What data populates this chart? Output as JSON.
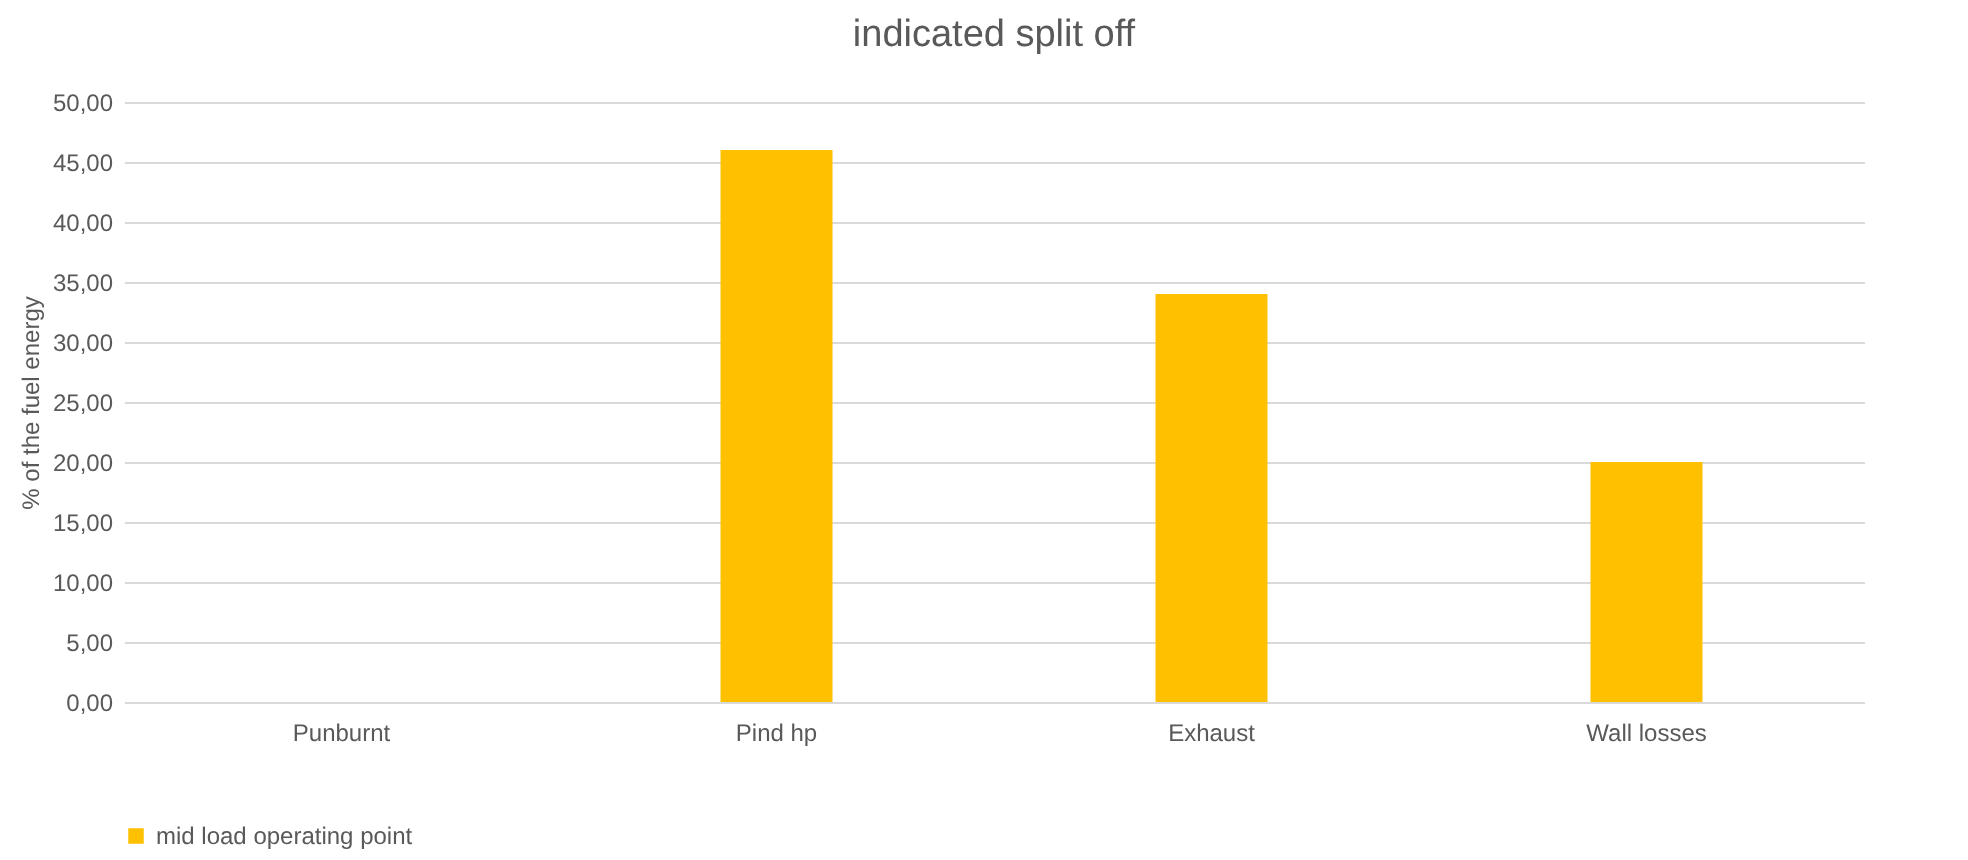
{
  "chart_data": {
    "type": "bar",
    "title": "indicated split off",
    "ylabel": "% of the fuel energy",
    "categories": [
      "Punburnt",
      "Pind hp",
      "Exhaust",
      "Wall losses"
    ],
    "series": [
      {
        "name": "mid load operating point",
        "color": "#ffc000",
        "values": [
          0,
          46,
          34,
          20
        ]
      }
    ],
    "ylim": [
      0,
      50
    ],
    "yticks": [
      {
        "value": 0,
        "label": "0,00"
      },
      {
        "value": 5,
        "label": "5,00"
      },
      {
        "value": 10,
        "label": "10,00"
      },
      {
        "value": 15,
        "label": "15,00"
      },
      {
        "value": 20,
        "label": "20,00"
      },
      {
        "value": 25,
        "label": "25,00"
      },
      {
        "value": 30,
        "label": "30,00"
      },
      {
        "value": 35,
        "label": "35,00"
      },
      {
        "value": 40,
        "label": "40,00"
      },
      {
        "value": 45,
        "label": "45,00"
      },
      {
        "value": 50,
        "label": "50,00"
      }
    ],
    "grid": "y",
    "legend": "bottom"
  }
}
